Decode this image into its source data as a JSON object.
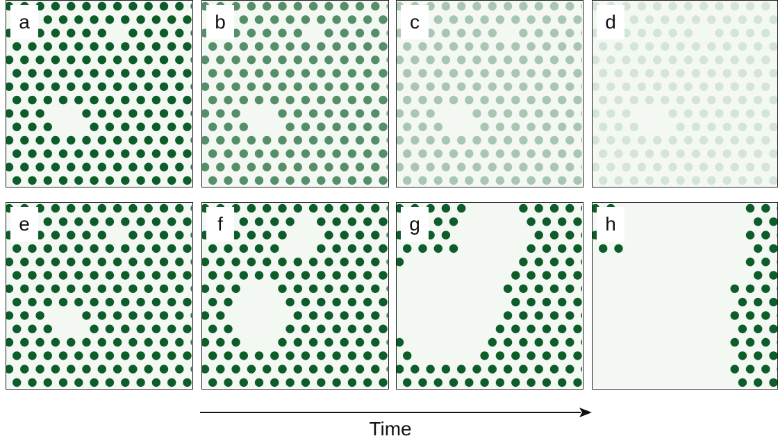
{
  "colors": {
    "dot": "#0d5c2a",
    "background": "#f3f8f3",
    "border": "#1a1a1a"
  },
  "panels": [
    {
      "label": "a",
      "intensity": 1.0,
      "voids": "small"
    },
    {
      "label": "b",
      "intensity": 0.68,
      "voids": "small"
    },
    {
      "label": "c",
      "intensity": 0.32,
      "voids": "small"
    },
    {
      "label": "d",
      "intensity": 0.13,
      "voids": "small"
    },
    {
      "label": "e",
      "intensity": 1.0,
      "voids": "small"
    },
    {
      "label": "f",
      "intensity": 1.0,
      "voids": "medium"
    },
    {
      "label": "g",
      "intensity": 1.0,
      "voids": "large"
    },
    {
      "label": "h",
      "intensity": 1.0,
      "voids": "merged"
    }
  ],
  "axis": {
    "label": "Time",
    "arrow": "left-to-right"
  }
}
